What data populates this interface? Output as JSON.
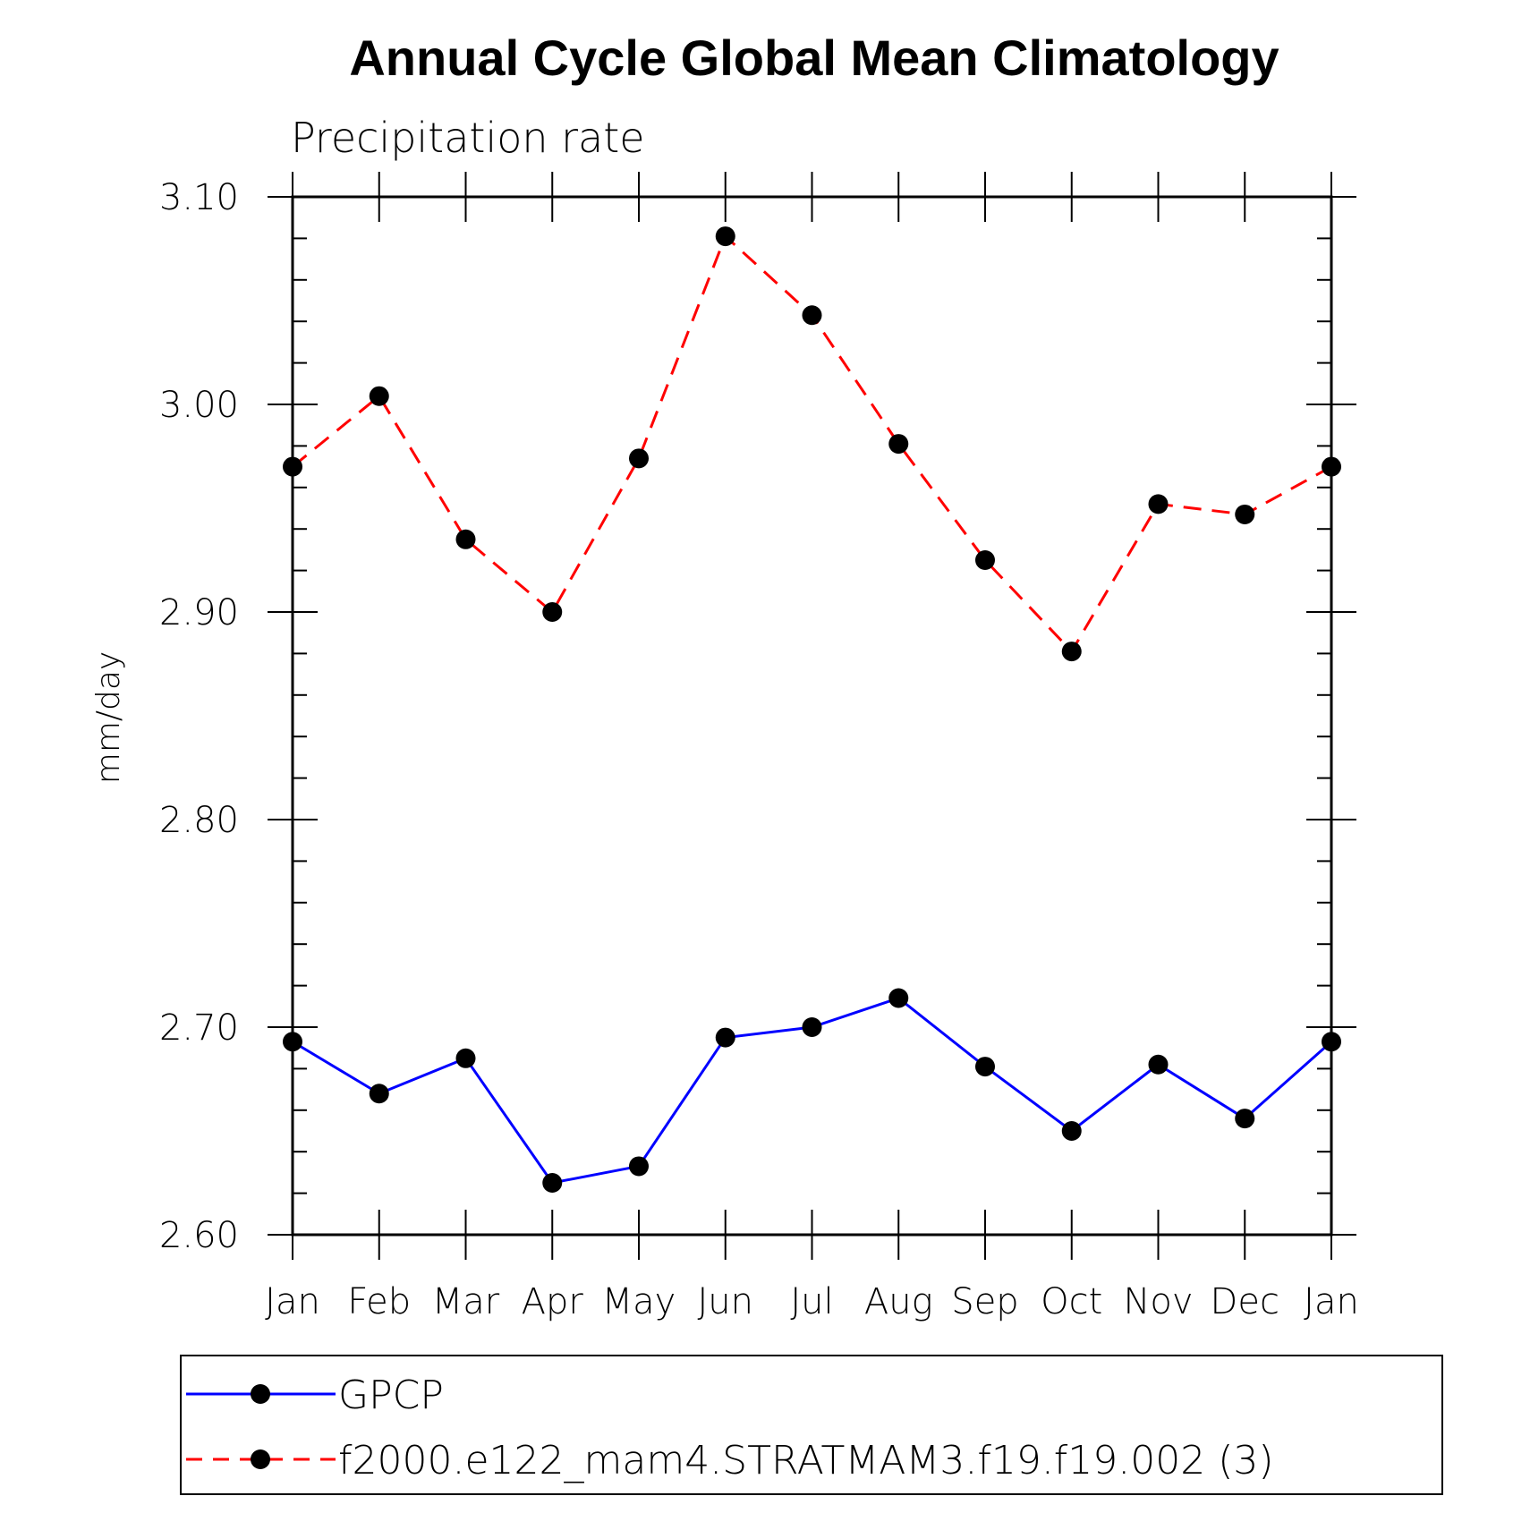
{
  "chart_data": {
    "type": "line",
    "title": "Annual Cycle Global Mean Climatology",
    "subtitle": "Precipitation rate",
    "ylabel": "mm/day",
    "xlabel": "",
    "categories": [
      "Jan",
      "Feb",
      "Mar",
      "Apr",
      "May",
      "Jun",
      "Jul",
      "Aug",
      "Sep",
      "Oct",
      "Nov",
      "Dec",
      "Jan"
    ],
    "ylim": [
      2.6,
      3.1
    ],
    "yticks": [
      "2.60",
      "2.70",
      "2.80",
      "2.90",
      "3.00",
      "3.10"
    ],
    "ytick_values": [
      2.6,
      2.7,
      2.8,
      2.9,
      3.0,
      3.1
    ],
    "series": [
      {
        "name": "GPCP",
        "color": "#0000ff",
        "dashed": false,
        "values": [
          2.693,
          2.668,
          2.685,
          2.625,
          2.633,
          2.695,
          2.7,
          2.714,
          2.681,
          2.65,
          2.682,
          2.656,
          2.693
        ]
      },
      {
        "name": "f2000.e122_mam4.STRATMAM3.f19.f19.002 (3)",
        "color": "#ff0000",
        "dashed": true,
        "values": [
          2.97,
          3.004,
          2.935,
          2.9,
          2.974,
          3.081,
          3.043,
          2.981,
          2.925,
          2.881,
          2.952,
          2.947,
          2.97
        ]
      }
    ],
    "legend_position": "bottom",
    "grid": false
  }
}
